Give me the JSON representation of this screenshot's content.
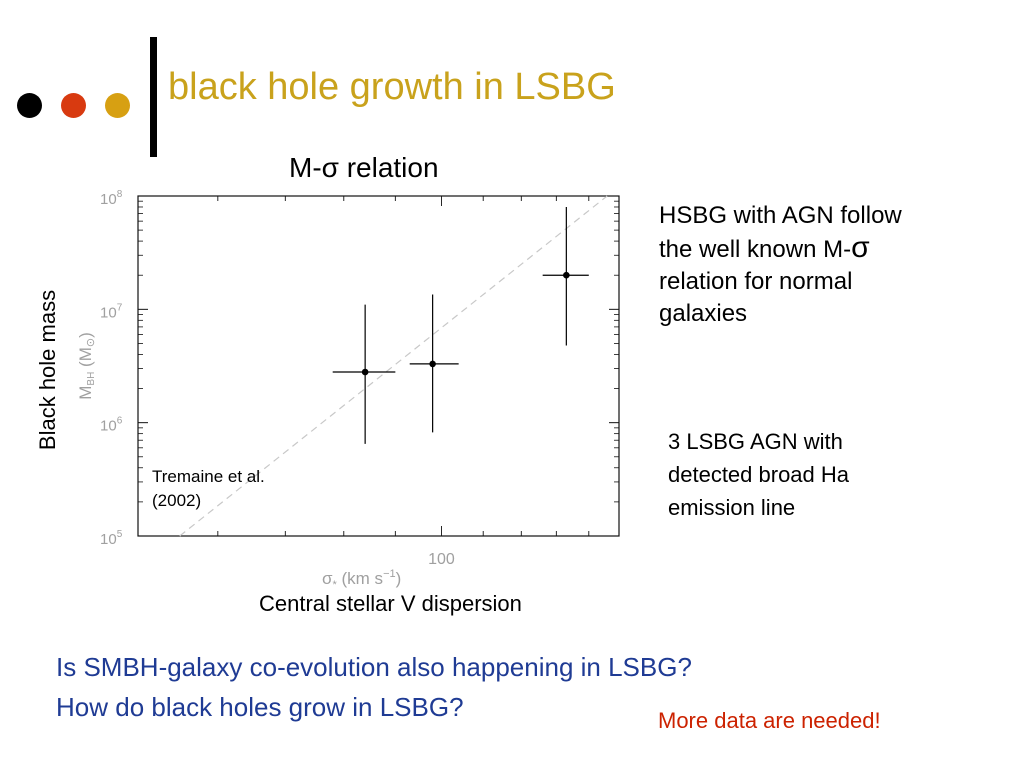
{
  "slide": {
    "title": "black hole growth in LSBG",
    "title_color": "#C9A21C",
    "bullet_colors": [
      "#000000",
      "#D83A10",
      "#D7A012"
    ],
    "subtitle": "M-σ  relation",
    "side_text_1": {
      "line1": "HSBG with AGN follow",
      "line2_prefix": "the well known M-",
      "line2_sigma": "σ",
      "line3": "relation for normal",
      "line4": "galaxies"
    },
    "side_text_2": {
      "line1": "3 LSBG AGN with",
      "line2": "detected broad Ha",
      "line3": "emission line"
    },
    "question_1": "Is SMBH-galaxy co-evolution also happening in LSBG?",
    "question_2": "How do black holes grow in LSBG?",
    "question_color": "#1F3B94",
    "footnote": "More data are needed!",
    "footnote_color": "#CC2200"
  },
  "chart_data": {
    "type": "scatter",
    "x_scale": "log",
    "y_scale": "log",
    "xlim": [
      50,
      150
    ],
    "ylim": [
      100000,
      100000000
    ],
    "y_overlay_label": "Black hole mass",
    "y_axis_label_main": "M",
    "y_axis_label_sub": "BH",
    "y_axis_label_unit": "(M",
    "y_axis_label_unit_symbol": "⊙",
    "y_axis_label_unit_close": ")",
    "x_axis_label": "σ",
    "x_axis_label_sub": "*",
    "x_axis_label_unit": "(km s",
    "x_axis_label_exp": "−1",
    "x_axis_label_close": ")",
    "x_overlay_label": "Central stellar V dispersion",
    "x_tick_labels": [
      {
        "value": 100,
        "label": "100"
      }
    ],
    "y_tick_labels": [
      {
        "value": 100000,
        "base": "10",
        "exp": "5"
      },
      {
        "value": 1000000,
        "base": "10",
        "exp": "6"
      },
      {
        "value": 10000000,
        "base": "10",
        "exp": "7"
      },
      {
        "value": 100000000,
        "base": "10",
        "exp": "8"
      }
    ],
    "relation_line": {
      "name": "Tremaine et al. (2002)",
      "points": [
        [
          55,
          100000
        ],
        [
          146,
          100000000
        ]
      ],
      "style": "dashed",
      "color": "#C8C8C8"
    },
    "annotation": {
      "line1": "Tremaine et al.",
      "line2": "(2002)"
    },
    "points": [
      {
        "x": 84,
        "y": 2800000,
        "xerr": [
          78,
          90
        ],
        "yerr": [
          650000,
          11000000
        ]
      },
      {
        "x": 98,
        "y": 3300000,
        "xerr": [
          93,
          104
        ],
        "yerr": [
          820000,
          13500000
        ]
      },
      {
        "x": 133,
        "y": 20000000,
        "xerr": [
          126,
          140
        ],
        "yerr": [
          4800000,
          80000000
        ]
      }
    ],
    "grid": false
  }
}
